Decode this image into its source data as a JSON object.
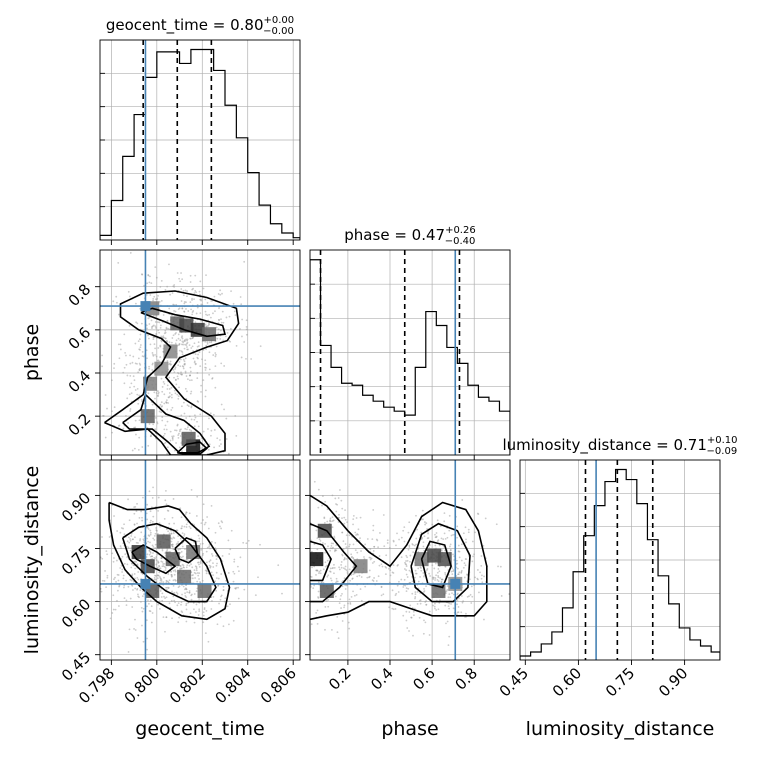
{
  "chart_data": {
    "type": "corner",
    "parameters": [
      "geocent_time",
      "phase",
      "luminosity_distance"
    ],
    "colors": {
      "truth": "#4682b4",
      "contour": "#000000",
      "hist": "#000000",
      "grid": "#b0b0b0"
    },
    "grid": true,
    "titles": [
      {
        "name": "geocent_time",
        "value": "0.80",
        "plus": "+0.00",
        "minus": "−0.00"
      },
      {
        "name": "phase",
        "value": "0.47",
        "plus": "+0.26",
        "minus": "−0.40"
      },
      {
        "name": "luminosity_distance",
        "value": "0.71",
        "plus": "+0.10",
        "minus": "−0.09"
      }
    ],
    "truths": {
      "geocent_time": 0.7995,
      "phase": 0.71,
      "luminosity_distance": 0.65
    },
    "axes": {
      "geocent_time": {
        "range": [
          0.7975,
          0.8063
        ],
        "ticks": [
          0.798,
          0.8,
          0.802,
          0.804,
          0.806
        ],
        "tick_labels": [
          "0.798",
          "0.800",
          "0.802",
          "0.804",
          "0.806"
        ]
      },
      "phase": {
        "range": [
          0.02,
          0.97
        ],
        "ticks": [
          0.2,
          0.4,
          0.6,
          0.8
        ],
        "tick_labels": [
          "0.2",
          "0.4",
          "0.6",
          "0.8"
        ]
      },
      "luminosity_distance": {
        "range": [
          0.435,
          1.0
        ],
        "ticks": [
          0.45,
          0.6,
          0.75,
          0.9
        ],
        "tick_labels": [
          "0.45",
          "0.60",
          "0.75",
          "0.90"
        ]
      }
    },
    "histograms": [
      {
        "param": "geocent_time",
        "quantiles": [
          0.7994,
          0.8009,
          0.8024
        ],
        "bin_edges": [
          0.7975,
          0.798,
          0.7985,
          0.799,
          0.7995,
          0.8,
          0.8005,
          0.801,
          0.8015,
          0.802,
          0.8025,
          0.803,
          0.8035,
          0.804,
          0.8045,
          0.805,
          0.8055,
          0.806,
          0.8063
        ],
        "counts": [
          2,
          17,
          36,
          54,
          70,
          81,
          81,
          76,
          82,
          82,
          73,
          58,
          44,
          29,
          15,
          7,
          3,
          1
        ]
      },
      {
        "param": "phase",
        "quantiles": [
          0.07,
          0.47,
          0.73
        ],
        "bin_edges": [
          0.02,
          0.07,
          0.12,
          0.17,
          0.22,
          0.27,
          0.32,
          0.37,
          0.42,
          0.47,
          0.52,
          0.57,
          0.62,
          0.67,
          0.72,
          0.77,
          0.82,
          0.87,
          0.92,
          0.97
        ],
        "counts": [
          98,
          55,
          44,
          36,
          35,
          30,
          27,
          24,
          22,
          20,
          44,
          72,
          65,
          54,
          46,
          35,
          29,
          27,
          22
        ]
      },
      {
        "param": "luminosity_distance",
        "quantiles": [
          0.62,
          0.71,
          0.81
        ],
        "bin_edges": [
          0.435,
          0.465,
          0.495,
          0.525,
          0.555,
          0.585,
          0.615,
          0.645,
          0.675,
          0.705,
          0.735,
          0.765,
          0.795,
          0.825,
          0.855,
          0.885,
          0.915,
          0.945,
          0.975,
          1.0
        ],
        "counts": [
          2,
          4,
          8,
          14,
          26,
          44,
          62,
          77,
          89,
          95,
          90,
          78,
          60,
          42,
          28,
          16,
          10,
          7,
          4
        ]
      }
    ],
    "pairs": [
      {
        "x": "geocent_time",
        "y": "phase",
        "density_centers": [
          [
            0.8016,
            0.06,
            1.0
          ],
          [
            0.8014,
            0.095,
            0.6
          ],
          [
            0.7996,
            0.2,
            0.55
          ],
          [
            0.7997,
            0.35,
            0.4
          ],
          [
            0.8002,
            0.42,
            0.3
          ],
          [
            0.8006,
            0.5,
            0.35
          ],
          [
            0.8009,
            0.63,
            0.55
          ],
          [
            0.8013,
            0.62,
            0.7
          ],
          [
            0.8018,
            0.6,
            0.8
          ],
          [
            0.8023,
            0.58,
            0.5
          ],
          [
            0.7998,
            0.7,
            0.4
          ]
        ],
        "contours": [
          [
            [
              0.7977,
              0.17
            ],
            [
              0.7985,
              0.23
            ],
            [
              0.7994,
              0.3
            ],
            [
              0.7996,
              0.38
            ],
            [
              0.8002,
              0.44
            ],
            [
              0.8006,
              0.52
            ],
            [
              0.8002,
              0.56
            ],
            [
              0.7992,
              0.6
            ],
            [
              0.7984,
              0.66
            ],
            [
              0.7984,
              0.72
            ],
            [
              0.7994,
              0.77
            ],
            [
              0.8008,
              0.78
            ],
            [
              0.8022,
              0.75
            ],
            [
              0.8035,
              0.7
            ],
            [
              0.8036,
              0.63
            ],
            [
              0.8031,
              0.55
            ],
            [
              0.8022,
              0.52
            ],
            [
              0.801,
              0.47
            ],
            [
              0.8004,
              0.38
            ],
            [
              0.8012,
              0.28
            ],
            [
              0.8024,
              0.2
            ],
            [
              0.803,
              0.12
            ],
            [
              0.803,
              0.04
            ],
            [
              0.8022,
              0.02
            ],
            [
              0.8006,
              0.02
            ],
            [
              0.8002,
              0.08
            ],
            [
              0.7996,
              0.14
            ],
            [
              0.7986,
              0.13
            ],
            [
              0.7977,
              0.17
            ]
          ],
          [
            [
              0.7985,
              0.17
            ],
            [
              0.7993,
              0.23
            ],
            [
              0.7995,
              0.3
            ],
            [
              0.7999,
              0.26
            ],
            [
              0.8004,
              0.21
            ],
            [
              0.8012,
              0.18
            ],
            [
              0.8019,
              0.12
            ],
            [
              0.8023,
              0.06
            ],
            [
              0.8018,
              0.03
            ],
            [
              0.801,
              0.03
            ],
            [
              0.8005,
              0.08
            ],
            [
              0.7998,
              0.14
            ],
            [
              0.7988,
              0.14
            ],
            [
              0.7985,
              0.17
            ]
          ],
          [
            [
              0.7993,
              0.68
            ],
            [
              0.8003,
              0.64
            ],
            [
              0.8012,
              0.6
            ],
            [
              0.8022,
              0.57
            ],
            [
              0.803,
              0.58
            ],
            [
              0.8029,
              0.62
            ],
            [
              0.8019,
              0.65
            ],
            [
              0.8008,
              0.67
            ],
            [
              0.7998,
              0.7
            ],
            [
              0.7993,
              0.68
            ]
          ],
          [
            [
              0.8009,
              0.03
            ],
            [
              0.8013,
              0.07
            ],
            [
              0.8019,
              0.08
            ],
            [
              0.8022,
              0.05
            ],
            [
              0.8019,
              0.025
            ],
            [
              0.8012,
              0.025
            ],
            [
              0.8009,
              0.03
            ]
          ]
        ]
      },
      {
        "x": "geocent_time",
        "y": "luminosity_distance",
        "density_centers": [
          [
            0.7992,
            0.74,
            0.8
          ],
          [
            0.7996,
            0.7,
            0.7
          ],
          [
            0.8003,
            0.77,
            0.6
          ],
          [
            0.8007,
            0.72,
            0.55
          ],
          [
            0.8012,
            0.67,
            0.5
          ],
          [
            0.8016,
            0.74,
            0.45
          ],
          [
            0.8021,
            0.63,
            0.5
          ],
          [
            0.7998,
            0.63,
            0.6
          ]
        ],
        "contours": [
          [
            [
              0.7979,
              0.88
            ],
            [
              0.7987,
              0.86
            ],
            [
              0.7995,
              0.86
            ],
            [
              0.8005,
              0.87
            ],
            [
              0.801,
              0.86
            ],
            [
              0.8015,
              0.82
            ],
            [
              0.8022,
              0.78
            ],
            [
              0.8028,
              0.72
            ],
            [
              0.8032,
              0.64
            ],
            [
              0.803,
              0.58
            ],
            [
              0.8022,
              0.55
            ],
            [
              0.8011,
              0.56
            ],
            [
              0.8,
              0.6
            ],
            [
              0.7993,
              0.64
            ],
            [
              0.7986,
              0.69
            ],
            [
              0.7981,
              0.76
            ],
            [
              0.7979,
              0.83
            ],
            [
              0.7979,
              0.88
            ]
          ],
          [
            [
              0.7985,
              0.78
            ],
            [
              0.7992,
              0.81
            ],
            [
              0.8,
              0.82
            ],
            [
              0.8008,
              0.8
            ],
            [
              0.8015,
              0.76
            ],
            [
              0.8022,
              0.7
            ],
            [
              0.8026,
              0.64
            ],
            [
              0.8022,
              0.6
            ],
            [
              0.8014,
              0.6
            ],
            [
              0.8004,
              0.63
            ],
            [
              0.7996,
              0.67
            ],
            [
              0.7988,
              0.72
            ],
            [
              0.7985,
              0.78
            ]
          ],
          [
            [
              0.7989,
              0.74
            ],
            [
              0.7994,
              0.76
            ],
            [
              0.8,
              0.74
            ],
            [
              0.8004,
              0.72
            ],
            [
              0.8008,
              0.7
            ],
            [
              0.8004,
              0.68
            ],
            [
              0.7997,
              0.7
            ],
            [
              0.7991,
              0.72
            ],
            [
              0.7989,
              0.74
            ]
          ],
          [
            [
              0.8008,
              0.75
            ],
            [
              0.8013,
              0.78
            ],
            [
              0.8017,
              0.77
            ],
            [
              0.8018,
              0.73
            ],
            [
              0.8014,
              0.71
            ],
            [
              0.801,
              0.72
            ],
            [
              0.8008,
              0.75
            ]
          ]
        ]
      },
      {
        "x": "phase",
        "y": "luminosity_distance",
        "density_centers": [
          [
            0.05,
            0.72,
            1.0
          ],
          [
            0.09,
            0.8,
            0.7
          ],
          [
            0.1,
            0.63,
            0.6
          ],
          [
            0.26,
            0.7,
            0.4
          ],
          [
            0.55,
            0.72,
            0.45
          ],
          [
            0.61,
            0.73,
            0.7
          ],
          [
            0.66,
            0.72,
            0.65
          ],
          [
            0.63,
            0.63,
            0.5
          ],
          [
            0.71,
            0.65,
            0.3
          ]
        ],
        "contours": [
          [
            [
              0.02,
              0.9
            ],
            [
              0.1,
              0.87
            ],
            [
              0.2,
              0.8
            ],
            [
              0.3,
              0.74
            ],
            [
              0.4,
              0.7
            ],
            [
              0.48,
              0.76
            ],
            [
              0.55,
              0.84
            ],
            [
              0.65,
              0.88
            ],
            [
              0.76,
              0.86
            ],
            [
              0.82,
              0.8
            ],
            [
              0.86,
              0.7
            ],
            [
              0.86,
              0.6
            ],
            [
              0.8,
              0.56
            ],
            [
              0.7,
              0.56
            ],
            [
              0.6,
              0.56
            ],
            [
              0.5,
              0.58
            ],
            [
              0.4,
              0.6
            ],
            [
              0.3,
              0.6
            ],
            [
              0.2,
              0.57
            ],
            [
              0.1,
              0.56
            ],
            [
              0.02,
              0.55
            ]
          ],
          [
            [
              0.02,
              0.82
            ],
            [
              0.1,
              0.8
            ],
            [
              0.18,
              0.74
            ],
            [
              0.24,
              0.7
            ],
            [
              0.16,
              0.64
            ],
            [
              0.08,
              0.6
            ],
            [
              0.02,
              0.6
            ]
          ],
          [
            [
              0.5,
              0.7
            ],
            [
              0.55,
              0.79
            ],
            [
              0.63,
              0.82
            ],
            [
              0.72,
              0.8
            ],
            [
              0.78,
              0.73
            ],
            [
              0.77,
              0.64
            ],
            [
              0.7,
              0.6
            ],
            [
              0.6,
              0.6
            ],
            [
              0.52,
              0.64
            ],
            [
              0.5,
              0.7
            ]
          ],
          [
            [
              0.02,
              0.77
            ],
            [
              0.08,
              0.76
            ],
            [
              0.12,
              0.72
            ],
            [
              0.08,
              0.66
            ],
            [
              0.02,
              0.66
            ]
          ],
          [
            [
              0.55,
              0.72
            ],
            [
              0.59,
              0.77
            ],
            [
              0.66,
              0.76
            ],
            [
              0.69,
              0.7
            ],
            [
              0.65,
              0.64
            ],
            [
              0.58,
              0.65
            ],
            [
              0.55,
              0.72
            ]
          ]
        ]
      }
    ]
  }
}
